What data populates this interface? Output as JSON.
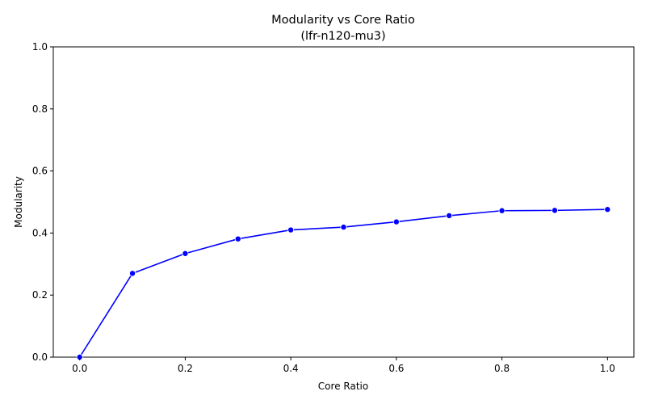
{
  "chart_data": {
    "type": "line",
    "title": "Modularity vs Core Ratio",
    "subtitle": "(lfr-n120-mu3)",
    "xlabel": "Core Ratio",
    "ylabel": "Modularity",
    "xlim": [
      -0.05,
      1.05
    ],
    "ylim": [
      0.0,
      1.0
    ],
    "xticks": [
      0.0,
      0.2,
      0.4,
      0.6,
      0.8,
      1.0
    ],
    "xtick_labels": [
      "0.0",
      "0.2",
      "0.4",
      "0.6",
      "0.8",
      "1.0"
    ],
    "yticks": [
      0.0,
      0.2,
      0.4,
      0.6,
      0.8,
      1.0
    ],
    "ytick_labels": [
      "0.0",
      "0.2",
      "0.4",
      "0.6",
      "0.8",
      "1.0"
    ],
    "grid": false,
    "legend": "none",
    "series": [
      {
        "color": "#0000ff",
        "marker": "circle",
        "x": [
          0.0,
          0.1,
          0.2,
          0.3,
          0.4,
          0.5,
          0.6,
          0.7,
          0.8,
          0.9,
          1.0
        ],
        "y": [
          0.0,
          0.27,
          0.334,
          0.381,
          0.41,
          0.419,
          0.436,
          0.456,
          0.472,
          0.473,
          0.476
        ]
      }
    ]
  }
}
